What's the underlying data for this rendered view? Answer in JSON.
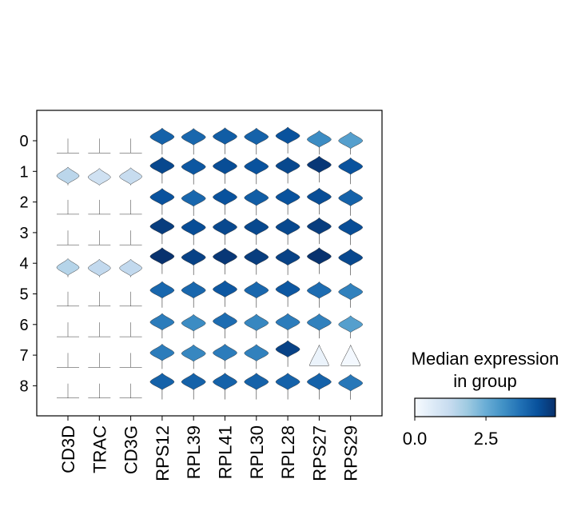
{
  "chart_data": {
    "type": "stacked_violin",
    "categories": [
      "CD3D",
      "TRAC",
      "CD3G",
      "RPS12",
      "RPL39",
      "RPL41",
      "RPL30",
      "RPL28",
      "RPS27",
      "RPS29"
    ],
    "groups": [
      "0",
      "1",
      "2",
      "3",
      "4",
      "5",
      "6",
      "7",
      "8"
    ],
    "values": [
      [
        0,
        0,
        0,
        4.0,
        3.9,
        4.1,
        4.0,
        4.3,
        3.2,
        2.8
      ],
      [
        1.4,
        1.0,
        1.2,
        4.5,
        4.2,
        4.4,
        4.3,
        4.5,
        4.8,
        4.3
      ],
      [
        0,
        0,
        0,
        4.3,
        3.9,
        4.3,
        4.1,
        4.3,
        4.4,
        4.0
      ],
      [
        0,
        0,
        0,
        4.7,
        4.4,
        4.5,
        4.5,
        4.5,
        4.7,
        4.4
      ],
      [
        1.5,
        1.3,
        1.3,
        4.9,
        4.6,
        4.8,
        4.7,
        4.6,
        4.9,
        4.5
      ],
      [
        0,
        0,
        0,
        3.9,
        3.9,
        4.2,
        3.9,
        4.2,
        3.8,
        3.4
      ],
      [
        0,
        0,
        0,
        3.5,
        3.2,
        3.8,
        3.3,
        3.5,
        3.4,
        2.8
      ],
      [
        0,
        0,
        0,
        3.5,
        3.3,
        3.5,
        3.4,
        4.6,
        0.3,
        0.1
      ],
      [
        0,
        0,
        0,
        4.0,
        4.0,
        4.0,
        4.0,
        4.0,
        4.0,
        3.6
      ]
    ],
    "colormap": [
      "#f7fbff",
      "#deebf7",
      "#c6dbef",
      "#9ecae1",
      "#6baed6",
      "#4292c6",
      "#2171b5",
      "#08519c",
      "#08306b"
    ],
    "clim": [
      0,
      4.94
    ],
    "cticks": [
      {
        "value": 0,
        "label": "0.0"
      },
      2.5
    ],
    "colorbar_title": [
      "Median expression",
      "in group"
    ]
  }
}
